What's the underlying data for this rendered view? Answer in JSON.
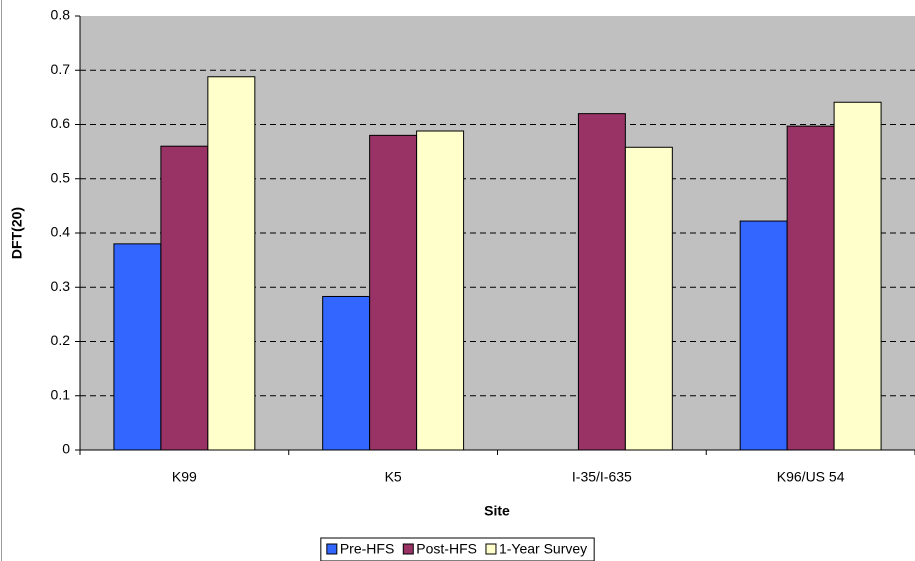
{
  "chart_data": {
    "type": "bar",
    "x_label": "Site",
    "y_label": "DFT(20)",
    "categories": [
      "K99",
      "K5",
      "I-35/I-635",
      "K96/US 54"
    ],
    "series": [
      {
        "name": "Pre-HFS",
        "color": "#3366ff",
        "values": [
          0.38,
          0.283,
          null,
          0.422
        ]
      },
      {
        "name": "Post-HFS",
        "color": "#993366",
        "values": [
          0.56,
          0.58,
          0.62,
          0.597
        ]
      },
      {
        "name": "1-Year Survey",
        "color": "#ffffcc",
        "values": [
          0.688,
          0.588,
          0.558,
          0.641
        ]
      }
    ],
    "ylim": [
      0,
      0.8
    ],
    "yticks": [
      0,
      0.1,
      0.2,
      0.3,
      0.4,
      0.5,
      0.6,
      0.7,
      0.8
    ],
    "grid": true,
    "legend": "bottom"
  }
}
